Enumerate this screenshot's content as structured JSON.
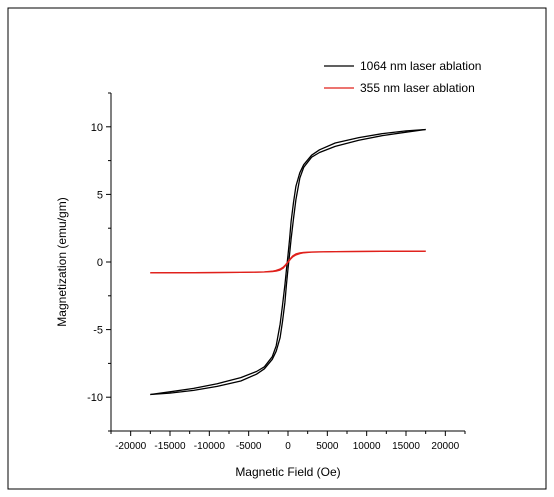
{
  "chart_data": {
    "type": "line",
    "title": "",
    "xlabel": "Magnetic Field (Oe)",
    "ylabel": "Magnetization (emu/gm)",
    "xlim": [
      -22500,
      22500
    ],
    "ylim": [
      -12.5,
      12.5
    ],
    "xticks": [
      -20000,
      -15000,
      -10000,
      -5000,
      0,
      5000,
      10000,
      15000,
      20000
    ],
    "yticks": [
      -10,
      -5,
      0,
      5,
      10
    ],
    "legend_position": "top-right",
    "grid": false,
    "series": [
      {
        "name": "1064 nm laser ablation",
        "color": "#000000",
        "descending": {
          "x": [
            17500,
            15000,
            12000,
            9000,
            6000,
            4000,
            3000,
            2000,
            1500,
            1000,
            700,
            400,
            200,
            0,
            -200,
            -400,
            -700,
            -1000,
            -1500,
            -2000,
            -3000,
            -4000,
            -6000,
            -9000,
            -12000,
            -15000,
            -17500
          ],
          "y": [
            9.8,
            9.6,
            9.35,
            9.0,
            8.55,
            8.1,
            7.75,
            7.0,
            6.2,
            4.6,
            3.2,
            1.7,
            0.6,
            -0.5,
            -1.7,
            -3.0,
            -4.4,
            -5.6,
            -6.6,
            -7.2,
            -7.9,
            -8.3,
            -8.8,
            -9.2,
            -9.5,
            -9.7,
            -9.8
          ]
        },
        "ascending": {
          "x": [
            -17500,
            -15000,
            -12000,
            -9000,
            -6000,
            -4000,
            -3000,
            -2000,
            -1500,
            -1000,
            -700,
            -400,
            -200,
            0,
            200,
            400,
            700,
            1000,
            1500,
            2000,
            3000,
            4000,
            6000,
            9000,
            12000,
            15000,
            17500
          ],
          "y": [
            -9.8,
            -9.6,
            -9.35,
            -9.0,
            -8.55,
            -8.1,
            -7.75,
            -7.0,
            -6.2,
            -4.6,
            -3.2,
            -1.7,
            -0.6,
            0.5,
            1.7,
            3.0,
            4.4,
            5.6,
            6.6,
            7.2,
            7.9,
            8.3,
            8.8,
            9.2,
            9.5,
            9.7,
            9.8
          ]
        }
      },
      {
        "name": "355 nm laser ablation",
        "color": "#e0201b",
        "descending": {
          "x": [
            17500,
            12000,
            6000,
            3000,
            2000,
            1500,
            1000,
            600,
            300,
            0,
            -300,
            -600,
            -1000,
            -1500,
            -2000,
            -3000,
            -6000,
            -12000,
            -17500
          ],
          "y": [
            0.8,
            0.79,
            0.77,
            0.74,
            0.71,
            0.67,
            0.6,
            0.45,
            0.25,
            0.02,
            -0.2,
            -0.38,
            -0.52,
            -0.62,
            -0.68,
            -0.73,
            -0.77,
            -0.79,
            -0.8
          ]
        },
        "ascending": {
          "x": [
            -17500,
            -12000,
            -6000,
            -3000,
            -2000,
            -1500,
            -1000,
            -600,
            -300,
            0,
            300,
            600,
            1000,
            1500,
            2000,
            3000,
            6000,
            12000,
            17500
          ],
          "y": [
            -0.8,
            -0.79,
            -0.77,
            -0.74,
            -0.71,
            -0.67,
            -0.6,
            -0.45,
            -0.25,
            -0.02,
            0.2,
            0.38,
            0.52,
            0.62,
            0.68,
            0.73,
            0.77,
            0.79,
            0.8
          ]
        }
      }
    ]
  }
}
